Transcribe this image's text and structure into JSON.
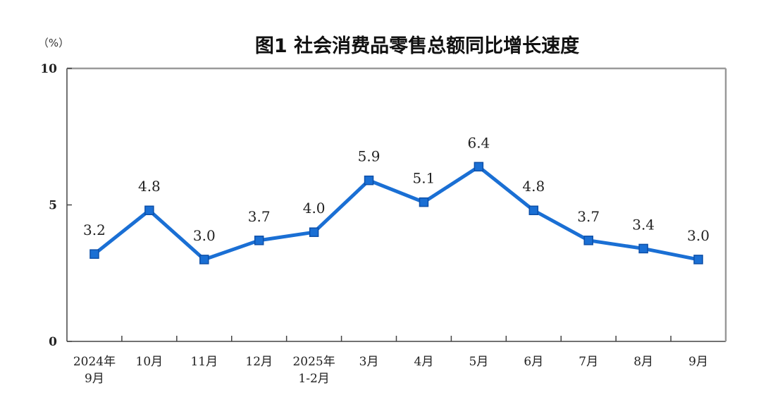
{
  "chart_data": {
    "type": "line",
    "title": "图1 社会消费品零售总额同比增长速度",
    "unit_label": "（%）",
    "ylim": [
      0,
      10
    ],
    "yticks": [
      0,
      5,
      10
    ],
    "categories": [
      [
        "2024年",
        "9月"
      ],
      [
        "10月"
      ],
      [
        "11月"
      ],
      [
        "12月"
      ],
      [
        "2025年",
        "1-2月"
      ],
      [
        "3月"
      ],
      [
        "4月"
      ],
      [
        "5月"
      ],
      [
        "6月"
      ],
      [
        "7月"
      ],
      [
        "8月"
      ],
      [
        "9月"
      ]
    ],
    "series": [
      {
        "values": [
          3.2,
          4.8,
          3.0,
          3.7,
          4.0,
          5.9,
          5.1,
          6.4,
          4.8,
          3.7,
          3.4,
          3.0
        ],
        "labels": [
          "3.2",
          "4.8",
          "3.0",
          "3.7",
          "4.0",
          "5.9",
          "5.1",
          "6.4",
          "4.8",
          "3.7",
          "3.4",
          "3.0"
        ],
        "color": "#1a6fd4"
      }
    ],
    "grid": false,
    "legend": "none"
  }
}
